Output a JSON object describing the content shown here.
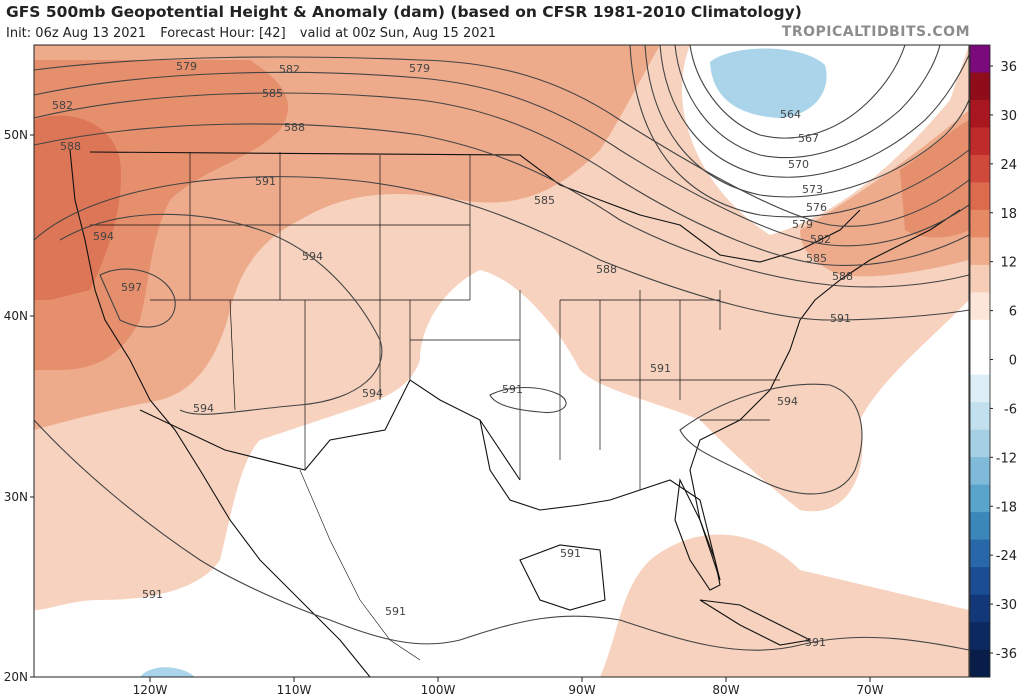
{
  "title": "GFS 500mb Geopotential Height & Anomaly (dam) (based on CFSR 1981-2010 Climatology)",
  "init": "Init: 06z Aug 13 2021",
  "forecast_hour": "Forecast Hour: [42]",
  "valid": "valid at 00z Sun, Aug 15 2021",
  "watermark": "TROPICALTIDBITS.COM",
  "lat_labels": [
    "50N",
    "40N",
    "30N",
    "20N"
  ],
  "lon_labels": [
    "120W",
    "110W",
    "100W",
    "90W",
    "80W",
    "70W"
  ],
  "colorbar": {
    "labels": [
      "36",
      "30",
      "24",
      "18",
      "12",
      "6",
      "0",
      "-6",
      "-12",
      "-18",
      "-24",
      "-30",
      "-36"
    ],
    "colors": [
      "#7b0a7d",
      "#8f0c1b",
      "#a8171f",
      "#bf2b2a",
      "#cf4a3a",
      "#dc6a4d",
      "#e68a66",
      "#eeac8c",
      "#f6cdb6",
      "#fbe6d9",
      "#ffffff",
      "#ffffff",
      "#deeef7",
      "#c3e0ee",
      "#a4cfe5",
      "#7fbbd9",
      "#5aa3cb",
      "#3c87ba",
      "#2868a8",
      "#1b4d92",
      "#12387a",
      "#0c2a61",
      "#081e48"
    ]
  },
  "contour_labels": [
    "579",
    "582",
    "585",
    "588",
    "591",
    "594",
    "597",
    "564",
    "567",
    "570",
    "573",
    "576"
  ],
  "colors": {
    "anomaly_strong": "#e58f6d",
    "anomaly_mid": "#eeab8c",
    "anomaly_weak": "#f7d2be",
    "negative_anomaly": "#a9d4ea",
    "contour": "#444444",
    "borders": "#111111"
  }
}
